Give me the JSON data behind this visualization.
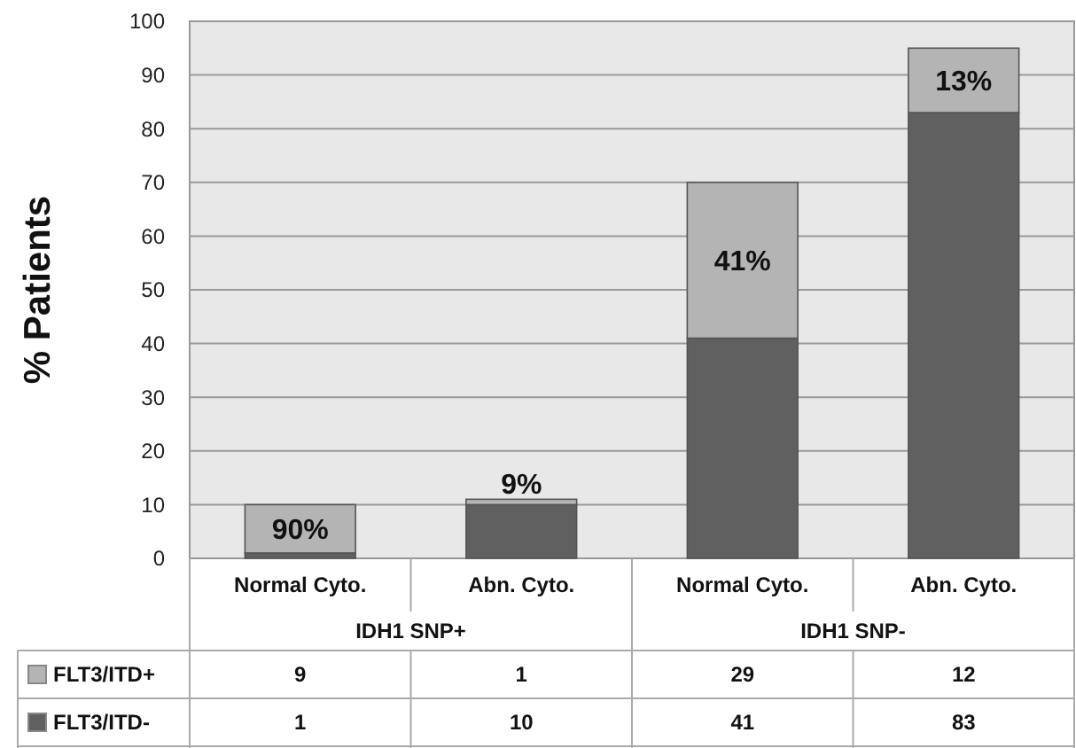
{
  "chart_data": {
    "type": "bar",
    "ylabel": "% Patients",
    "categories": [
      "Normal Cyto.",
      "Abn. Cyto.",
      "Normal Cyto.",
      "Abn. Cyto."
    ],
    "series": [
      {
        "name": "FLT3/ITD-",
        "color": "#606060",
        "values": [
          1,
          10,
          41,
          83
        ]
      },
      {
        "name": "FLT3/ITD+",
        "color": "#b4b4b4",
        "values": [
          9,
          1,
          29,
          12
        ]
      }
    ],
    "stacked": true,
    "ylim": [
      0,
      100
    ],
    "yticks": [
      0,
      10,
      20,
      30,
      40,
      50,
      60,
      70,
      80,
      90,
      100
    ],
    "grid": "y",
    "data_labels": true,
    "legend": "bottom",
    "annotations": [
      "90%",
      "9%",
      "41%",
      "13%",
      "IDH1 SNP+",
      "IDH1 SNP-"
    ]
  }
}
